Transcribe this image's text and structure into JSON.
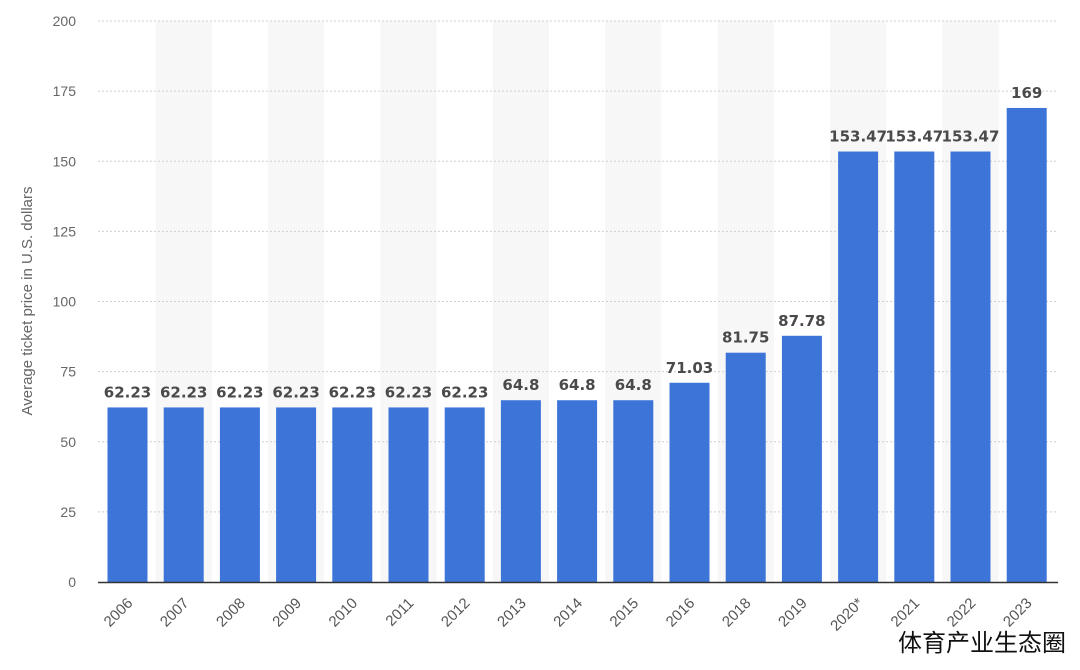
{
  "chart_data": {
    "type": "bar",
    "title": "",
    "xlabel": "",
    "ylabel": "Average ticket price in U.S. dollars",
    "ylim": [
      0,
      200
    ],
    "yticks": [
      0,
      25,
      50,
      75,
      100,
      125,
      150,
      175,
      200
    ],
    "grid": true,
    "categories": [
      "2006",
      "2007",
      "2008",
      "2009",
      "2010",
      "2011",
      "2012",
      "2013",
      "2014",
      "2015",
      "2016",
      "2018",
      "2019",
      "2020*",
      "2021",
      "2022",
      "2023"
    ],
    "values": [
      62.23,
      62.23,
      62.23,
      62.23,
      62.23,
      62.23,
      62.23,
      64.8,
      64.8,
      64.8,
      71.03,
      81.75,
      87.78,
      153.47,
      153.47,
      153.47,
      169
    ],
    "value_labels": [
      "62.23",
      "62.23",
      "62.23",
      "62.23",
      "62.23",
      "62.23",
      "62.23",
      "64.8",
      "64.8",
      "64.8",
      "71.03",
      "81.75",
      "87.78",
      "153.47",
      "153.47",
      "153.47",
      "169"
    ],
    "bar_color": "#3d74d8"
  },
  "watermark": "体育产业生态圈"
}
